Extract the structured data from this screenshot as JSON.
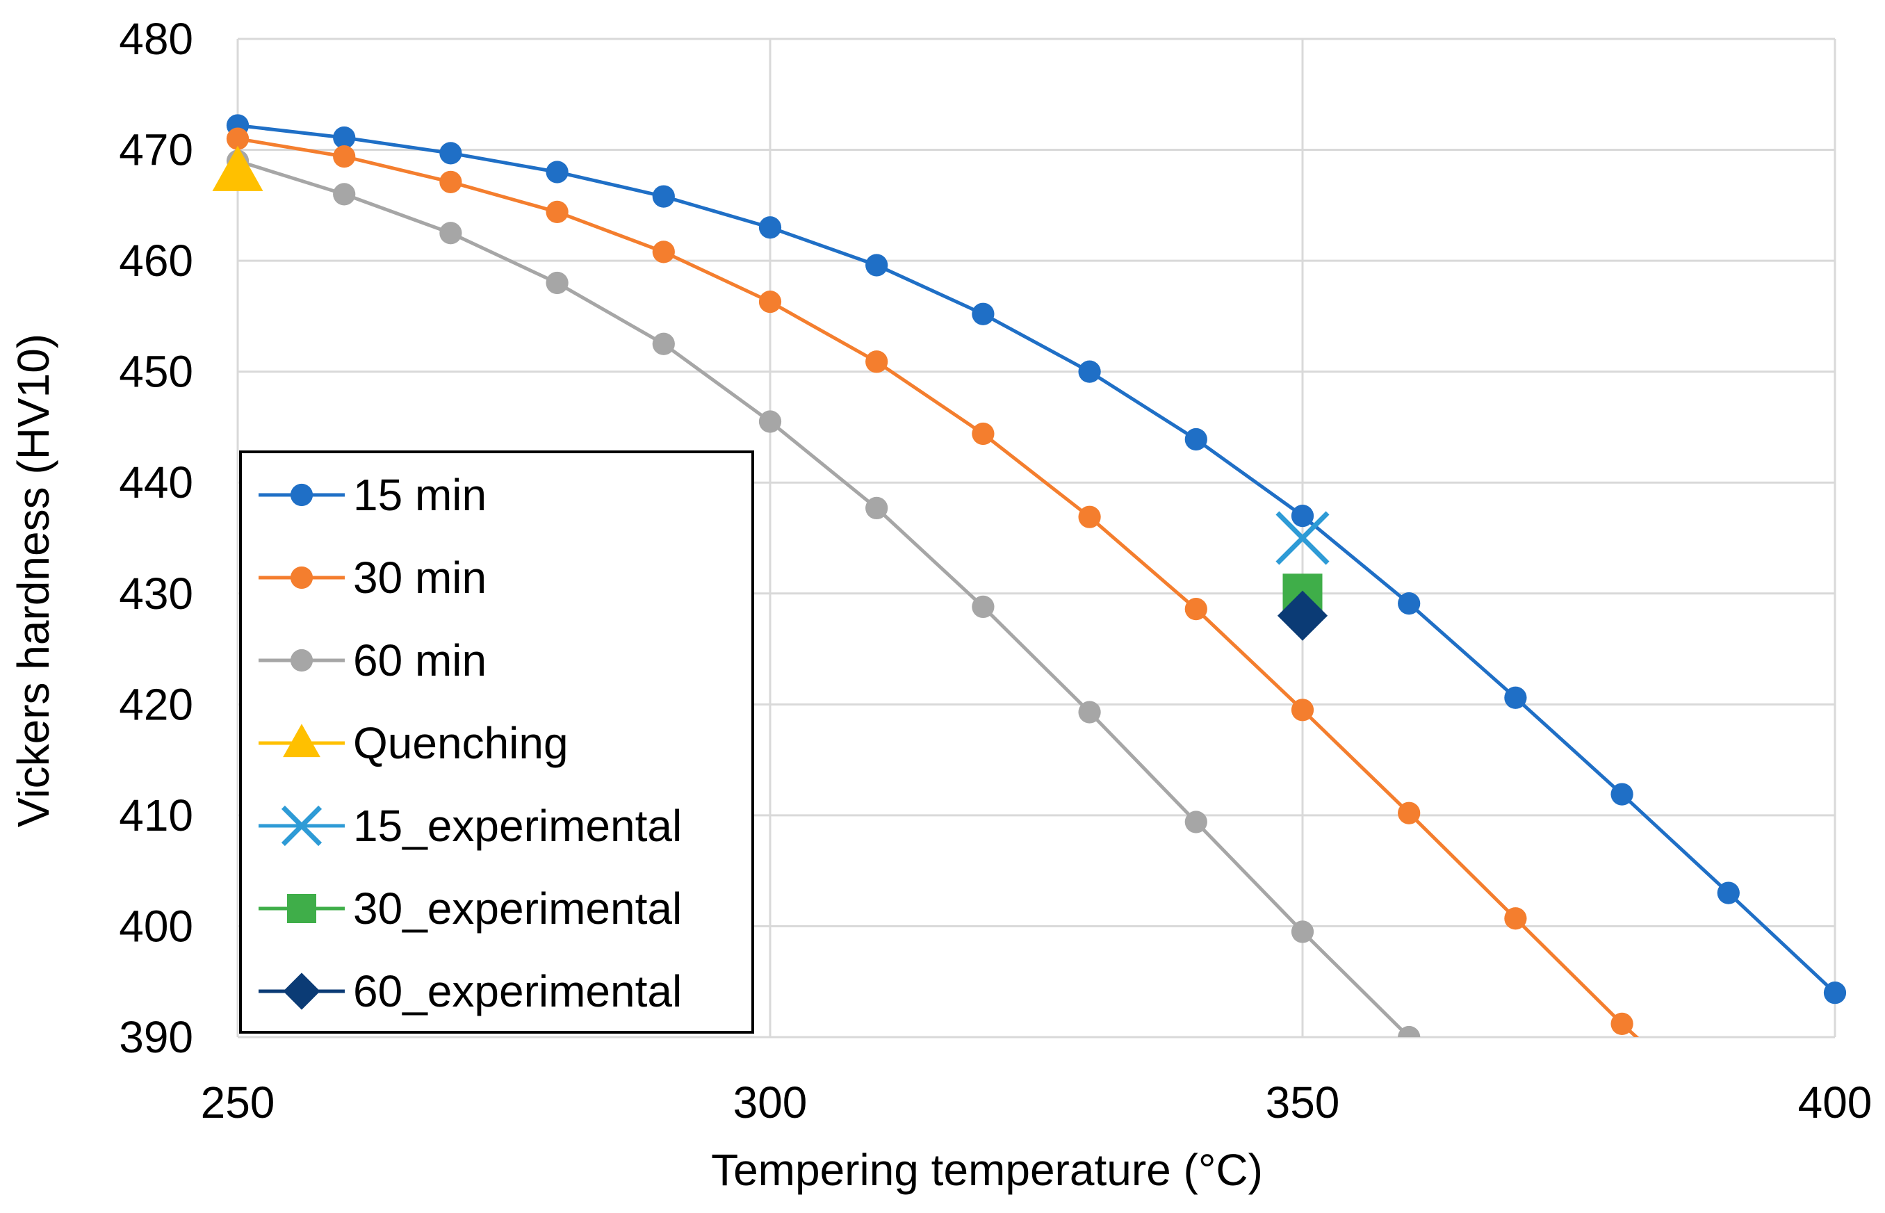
{
  "chart_data": {
    "type": "line",
    "title": "",
    "xlabel": "Tempering temperature (°C)",
    "ylabel": "Vickers hardness (HV10)",
    "xlim": [
      250,
      400
    ],
    "ylim": [
      390,
      480
    ],
    "xticks": [
      250,
      300,
      350,
      400
    ],
    "yticks": [
      390,
      400,
      410,
      420,
      430,
      440,
      450,
      460,
      470,
      480
    ],
    "grid": true,
    "legend_position": "left-bottom",
    "series": [
      {
        "name": "15 min",
        "color": "#1f6fc6",
        "marker": "circle",
        "line": true,
        "x": [
          250,
          260,
          270,
          280,
          290,
          300,
          310,
          320,
          330,
          340,
          350,
          360,
          370,
          380,
          390,
          400
        ],
        "y": [
          472.2,
          471.1,
          469.7,
          468.0,
          465.8,
          463.0,
          459.6,
          455.2,
          450.0,
          443.9,
          437.0,
          429.1,
          420.6,
          411.9,
          403.0,
          394.0
        ]
      },
      {
        "name": "30 min",
        "color": "#f47e2e",
        "marker": "circle",
        "line": true,
        "x": [
          250,
          260,
          270,
          280,
          290,
          300,
          310,
          320,
          330,
          340,
          350,
          360,
          370,
          380,
          382.5
        ],
        "y": [
          471.0,
          469.4,
          467.1,
          464.4,
          460.8,
          456.3,
          450.9,
          444.4,
          436.9,
          428.6,
          419.5,
          410.2,
          400.7,
          391.2,
          389.0
        ]
      },
      {
        "name": "60 min",
        "color": "#a6a6a6",
        "marker": "circle",
        "line": true,
        "x": [
          250,
          260,
          270,
          280,
          290,
          300,
          310,
          320,
          330,
          340,
          350,
          360
        ],
        "y": [
          469.0,
          466.0,
          462.5,
          458.0,
          452.5,
          445.5,
          437.7,
          428.8,
          419.3,
          409.4,
          399.5,
          390.0
        ]
      },
      {
        "name": "Quenching",
        "color": "#ffc000",
        "marker": "triangle",
        "line": false,
        "x": [
          250
        ],
        "y": [
          468.0
        ]
      },
      {
        "name": "15_experimental",
        "color": "#2e9bd6",
        "marker": "x",
        "line": false,
        "x": [
          350
        ],
        "y": [
          435.0
        ]
      },
      {
        "name": "30_experimental",
        "color": "#3fae49",
        "marker": "square",
        "line": false,
        "x": [
          350
        ],
        "y": [
          430.0
        ]
      },
      {
        "name": "60_experimental",
        "color": "#0b3b75",
        "marker": "diamond",
        "line": false,
        "x": [
          350
        ],
        "y": [
          428.0
        ]
      }
    ]
  }
}
